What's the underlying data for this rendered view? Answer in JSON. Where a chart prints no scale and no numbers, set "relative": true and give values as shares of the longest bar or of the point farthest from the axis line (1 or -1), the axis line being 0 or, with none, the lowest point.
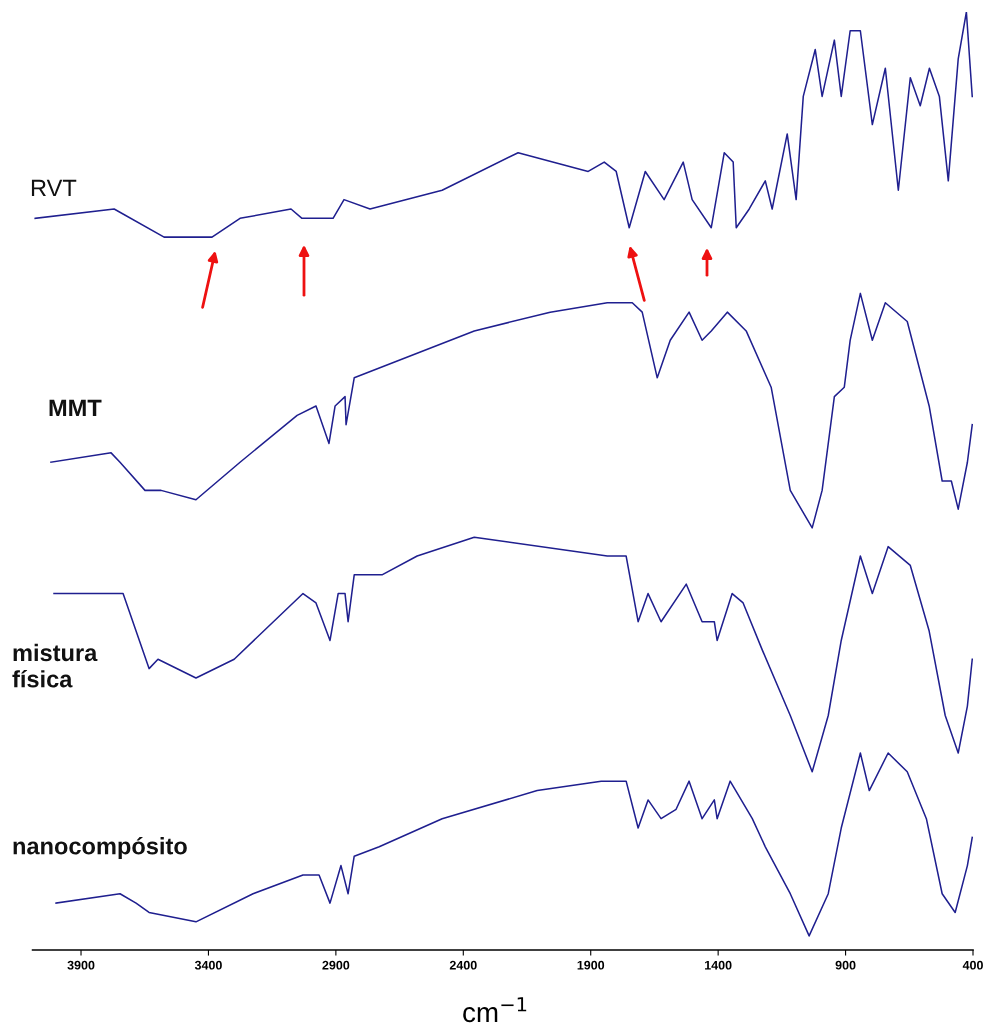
{
  "chart_data": {
    "type": "line",
    "relative": true,
    "xlabel": "cm$^{−1}$",
    "xlim": [
      4090,
      400
    ],
    "xticks": [
      3900,
      3400,
      2900,
      2400,
      1900,
      1400,
      900,
      400
    ],
    "grid": false,
    "legend": false,
    "marker": "none",
    "line_style": "solid",
    "series": [
      {
        "name": "RVT",
        "color": "#1f1f8f",
        "x": [
          4080,
          3770,
          3574,
          3386,
          3276,
          3076,
          3033,
          2978,
          2911,
          2868,
          2766,
          2483,
          2185,
          1910,
          1847,
          1800,
          1749,
          1686,
          1612,
          1537,
          1502,
          1427,
          1376,
          1341,
          1329,
          1278,
          1215,
          1188,
          1129,
          1094,
          1066,
          1019,
          992,
          944,
          917,
          882,
          842,
          795,
          744,
          693,
          646,
          607,
          571,
          532,
          497,
          458,
          426,
          403
        ],
        "values": [
          0.78,
          0.79,
          0.76,
          0.76,
          0.78,
          0.79,
          0.78,
          0.78,
          0.78,
          0.8,
          0.79,
          0.81,
          0.85,
          0.83,
          0.84,
          0.83,
          0.77,
          0.83,
          0.8,
          0.84,
          0.8,
          0.77,
          0.85,
          0.84,
          0.77,
          0.79,
          0.82,
          0.79,
          0.87,
          0.8,
          0.91,
          0.96,
          0.91,
          0.97,
          0.91,
          0.98,
          0.98,
          0.88,
          0.94,
          0.81,
          0.93,
          0.9,
          0.94,
          0.91,
          0.82,
          0.95,
          1.0,
          0.91
        ]
      },
      {
        "name": "MMT",
        "color": "#1f1f8f",
        "x": [
          4018,
          3782,
          3747,
          3649,
          3586,
          3449,
          3276,
          3052,
          2978,
          2927,
          2903,
          2864,
          2860,
          2828,
          2357,
          2059,
          1835,
          1737,
          1698,
          1639,
          1588,
          1514,
          1463,
          1427,
          1364,
          1290,
          1192,
          1117,
          1031,
          992,
          944,
          905,
          882,
          842,
          795,
          744,
          658,
          572,
          521,
          485,
          458,
          422,
          403
        ],
        "values": [
          0.52,
          0.53,
          0.52,
          0.49,
          0.49,
          0.48,
          0.52,
          0.57,
          0.58,
          0.54,
          0.58,
          0.59,
          0.56,
          0.61,
          0.66,
          0.68,
          0.69,
          0.69,
          0.68,
          0.61,
          0.65,
          0.68,
          0.65,
          0.66,
          0.68,
          0.66,
          0.6,
          0.49,
          0.45,
          0.49,
          0.59,
          0.6,
          0.65,
          0.7,
          0.65,
          0.69,
          0.67,
          0.58,
          0.5,
          0.5,
          0.47,
          0.52,
          0.56
        ]
      },
      {
        "name": "mistura\nfísica",
        "color": "#1f1f8f",
        "x": [
          4006,
          3735,
          3633,
          3598,
          3449,
          3299,
          3029,
          2978,
          2923,
          2891,
          2864,
          2852,
          2828,
          2719,
          2581,
          2357,
          1835,
          1761,
          1714,
          1675,
          1624,
          1525,
          1463,
          1415,
          1404,
          1345,
          1302,
          1227,
          1117,
          1031,
          968,
          917,
          842,
          795,
          733,
          646,
          572,
          509,
          458,
          422,
          403
        ],
        "values": [
          0.38,
          0.38,
          0.3,
          0.31,
          0.29,
          0.31,
          0.38,
          0.37,
          0.33,
          0.38,
          0.38,
          0.35,
          0.4,
          0.4,
          0.42,
          0.44,
          0.42,
          0.42,
          0.35,
          0.38,
          0.35,
          0.39,
          0.35,
          0.35,
          0.33,
          0.38,
          0.37,
          0.32,
          0.25,
          0.19,
          0.25,
          0.33,
          0.42,
          0.38,
          0.43,
          0.41,
          0.34,
          0.25,
          0.21,
          0.26,
          0.31
        ]
      },
      {
        "name": "nanocompósito",
        "color": "#1f1f8f",
        "x": [
          3998,
          3747,
          3684,
          3633,
          3449,
          3225,
          3029,
          2966,
          2923,
          2880,
          2852,
          2828,
          2730,
          2483,
          2110,
          1859,
          1761,
          1714,
          1675,
          1624,
          1565,
          1514,
          1463,
          1415,
          1404,
          1353,
          1266,
          1215,
          1117,
          1043,
          968,
          917,
          842,
          807,
          733,
          658,
          583,
          521,
          470,
          422,
          403
        ],
        "values": [
          0.05,
          0.06,
          0.05,
          0.04,
          0.03,
          0.06,
          0.08,
          0.08,
          0.05,
          0.09,
          0.06,
          0.1,
          0.11,
          0.14,
          0.17,
          0.18,
          0.18,
          0.13,
          0.16,
          0.14,
          0.15,
          0.18,
          0.14,
          0.16,
          0.14,
          0.18,
          0.14,
          0.11,
          0.06,
          0.015,
          0.06,
          0.13,
          0.21,
          0.17,
          0.21,
          0.19,
          0.14,
          0.06,
          0.04,
          0.09,
          0.12
        ]
      }
    ]
  }
}
